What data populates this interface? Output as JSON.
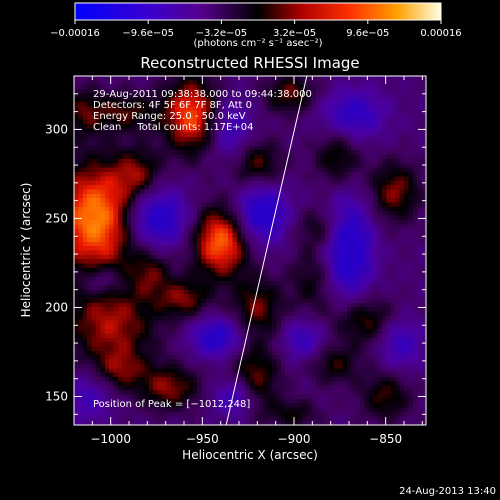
{
  "chart_data": {
    "type": "heatmap",
    "title": "Reconstructed RHESSI Image",
    "xlabel": "Heliocentric X (arcsec)",
    "ylabel": "Heliocentric Y (arcsec)",
    "xlim": [
      -1020,
      -828
    ],
    "ylim": [
      134,
      330
    ],
    "xticks": [
      -1000,
      -950,
      -900,
      -850
    ],
    "xtick_labels": [
      "−1000",
      "−950",
      "−900",
      "−850"
    ],
    "yticks": [
      150,
      200,
      250,
      300
    ],
    "ytick_labels": [
      "150",
      "200",
      "250",
      "300"
    ],
    "colorbar": {
      "min": -0.00016,
      "max": 0.00016,
      "ticks": [
        -0.00016,
        -9.6e-05,
        -3.2e-05,
        3.2e-05,
        9.6e-05,
        0.00016
      ],
      "tick_labels": [
        "−0.00016",
        "−9.6e−05",
        "−3.2e−05",
        "3.2e−05",
        "9.6e−05",
        "0.00016"
      ],
      "unit_label": "(photons cm⁻² s⁻¹ asec⁻²)"
    },
    "annotations": [
      "29‑Aug‑2011 09:38:38.000 to 09:44:38.000",
      "Detectors: 4F 5F 6F 7F 8F, Att 0",
      "Energy Range: 25.0 ‑ 50.0 keV",
      "Clean     Total counts: 1.17E+04"
    ],
    "peak_label": "Position of Peak = [−1012,248]",
    "peak": {
      "x": -1012,
      "y": 248
    },
    "limb_line": [
      {
        "x": -937,
        "y": 134
      },
      {
        "x": -893,
        "y": 330
      }
    ],
    "blobs": [
      {
        "x": -1008,
        "y": 250,
        "sx": 16,
        "sy": 22,
        "a": 1.05
      },
      {
        "x": -940,
        "y": 237,
        "sx": 11,
        "sy": 14,
        "a": 0.95
      },
      {
        "x": -956,
        "y": 308,
        "sx": 11,
        "sy": 15,
        "a": 0.85
      },
      {
        "x": -992,
        "y": 310,
        "sx": 12,
        "sy": 8,
        "a": 0.45
      },
      {
        "x": -960,
        "y": 205,
        "sx": 10,
        "sy": 8,
        "a": 0.5
      },
      {
        "x": -978,
        "y": 220,
        "sx": 8,
        "sy": 10,
        "a": 0.4
      },
      {
        "x": -1000,
        "y": 190,
        "sx": 18,
        "sy": 16,
        "a": 0.6
      },
      {
        "x": -968,
        "y": 155,
        "sx": 12,
        "sy": 9,
        "a": 0.55
      },
      {
        "x": -995,
        "y": 165,
        "sx": 10,
        "sy": 8,
        "a": 0.4
      },
      {
        "x": -922,
        "y": 160,
        "sx": 10,
        "sy": 14,
        "a": 0.55
      },
      {
        "x": -920,
        "y": 200,
        "sx": 10,
        "sy": 12,
        "a": 0.5
      },
      {
        "x": -920,
        "y": 280,
        "sx": 10,
        "sy": 10,
        "a": 0.5
      },
      {
        "x": -902,
        "y": 320,
        "sx": 10,
        "sy": 8,
        "a": 0.5
      },
      {
        "x": -890,
        "y": 215,
        "sx": 9,
        "sy": 14,
        "a": 0.35
      },
      {
        "x": -876,
        "y": 285,
        "sx": 9,
        "sy": 12,
        "a": 0.45
      },
      {
        "x": -845,
        "y": 265,
        "sx": 10,
        "sy": 12,
        "a": 0.55
      },
      {
        "x": -862,
        "y": 193,
        "sx": 12,
        "sy": 10,
        "a": 0.5
      },
      {
        "x": -878,
        "y": 168,
        "sx": 10,
        "sy": 8,
        "a": 0.4
      },
      {
        "x": -850,
        "y": 150,
        "sx": 10,
        "sy": 10,
        "a": 0.45
      },
      {
        "x": -885,
        "y": 245,
        "sx": 10,
        "sy": 8,
        "a": 0.35
      },
      {
        "x": -1015,
        "y": 310,
        "sx": 8,
        "sy": 10,
        "a": 0.4
      },
      {
        "x": -985,
        "y": 275,
        "sx": 9,
        "sy": 10,
        "a": 0.45
      },
      {
        "x": -900,
        "y": 140,
        "sx": 10,
        "sy": 6,
        "a": 0.35
      },
      {
        "x": -975,
        "y": 250,
        "sx": 12,
        "sy": 12,
        "a": -0.8
      },
      {
        "x": -918,
        "y": 253,
        "sx": 10,
        "sy": 12,
        "a": -0.8
      },
      {
        "x": -870,
        "y": 233,
        "sx": 9,
        "sy": 20,
        "a": -0.85
      },
      {
        "x": -942,
        "y": 183,
        "sx": 10,
        "sy": 8,
        "a": -0.7
      },
      {
        "x": -932,
        "y": 150,
        "sx": 8,
        "sy": 8,
        "a": -0.6
      },
      {
        "x": -868,
        "y": 308,
        "sx": 12,
        "sy": 10,
        "a": -0.6
      },
      {
        "x": -935,
        "y": 300,
        "sx": 8,
        "sy": 12,
        "a": -0.5
      },
      {
        "x": -1005,
        "y": 215,
        "sx": 8,
        "sy": 6,
        "a": -0.4
      },
      {
        "x": -842,
        "y": 180,
        "sx": 8,
        "sy": 10,
        "a": -0.5
      },
      {
        "x": -1012,
        "y": 150,
        "sx": 8,
        "sy": 10,
        "a": -0.4
      },
      {
        "x": -895,
        "y": 182,
        "sx": 8,
        "sy": 8,
        "a": -0.5
      }
    ]
  },
  "timestamp": "24‑Aug‑2013 13:40"
}
